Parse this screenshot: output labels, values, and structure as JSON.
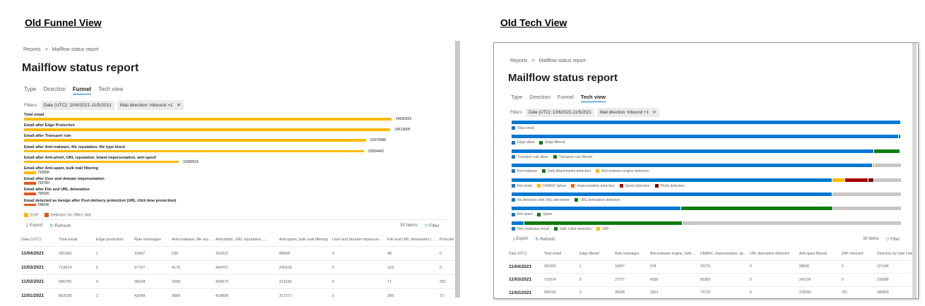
{
  "headings": {
    "left": "Old Funnel View",
    "right": "Old Tech View"
  },
  "breadcrumb": {
    "root": "Reports",
    "sep": ">",
    "current": "Mailflow status report"
  },
  "page_title": "Mailflow status report",
  "tabs": [
    "Type",
    "Direction",
    "Funnel",
    "Tech view"
  ],
  "filters": {
    "label": "Filters:",
    "date": "Date (UTC): 10/6/2021-11/5/2021",
    "direction": "Mail direction: Inbound +1",
    "close": "✕"
  },
  "toolbar": {
    "export": "Export",
    "refresh": "Refresh",
    "items": "30 items",
    "filter": "Filter"
  },
  "colors": {
    "eop": "#ffb900",
    "defender": "#e3571c",
    "blue": "#0078d4",
    "green": "#107c10",
    "yellow": "#ffb900",
    "orange": "#f7630c",
    "red": "#a80000",
    "maroon": "#6e0a0a",
    "gray": "#c8c6c4"
  },
  "chart_data": [
    {
      "type": "bar",
      "orientation": "horizontal",
      "title": "",
      "categories": [
        "Total email",
        "Email after Edge Protection",
        "Email after Transport rule",
        "Email after Anti-malware, file reputation, file type block",
        "Email after Anti-phish, URL reputation, brand impersonation, anti-spoof",
        "Email after Anti-spam, bulk mail filtering",
        "Email after User and domain impersonation",
        "Email after File and URL detonation",
        "Email detected as benign after Post-delivery protection (URL click time protection)"
      ],
      "values": [
        24690303,
        24613695,
        22970988,
        22834442,
        10389516,
        793808,
        793789,
        790605,
        788646
      ],
      "value_labels": [
        "24690303",
        "24613695",
        "22970988",
        "22834442",
        "10389516",
        "793808",
        "793789",
        "790605",
        "788646"
      ],
      "series_by_category": [
        "EOP",
        "EOP",
        "EOP",
        "EOP",
        "EOP",
        "EOP",
        "Defender for Office 365",
        "Defender for Office 365",
        "Defender for Office 365"
      ],
      "legend": [
        "EOP",
        "Defender for Office 365"
      ]
    },
    {
      "type": "bar",
      "orientation": "horizontal",
      "stacked": "100%",
      "rows": [
        {
          "segments": [
            {
              "name": "Total email",
              "color": "blue",
              "share": 1.0
            }
          ]
        },
        {
          "segments": [
            {
              "name": "Edge allow",
              "color": "blue",
              "share": 0.997
            },
            {
              "name": "Edge filtered",
              "color": "green",
              "share": 0.003
            }
          ]
        },
        {
          "segments": [
            {
              "name": "Transport rule allow",
              "color": "blue",
              "share": 0.93
            },
            {
              "name": "Transport rule filtered",
              "color": "green",
              "share": 0.065
            }
          ]
        },
        {
          "segments": [
            {
              "name": "Not malware",
              "color": "blue",
              "share": 0.925
            },
            {
              "name": "Safe Attachments detection",
              "color": "green",
              "share": 0.0
            },
            {
              "name": "Anti-malware engine detection",
              "color": "yellow",
              "share": 0.005
            }
          ]
        },
        {
          "segments": [
            {
              "name": "Not phish",
              "color": "blue",
              "share": 0.822
            },
            {
              "name": "DMARC failure",
              "color": "yellow",
              "share": 0.031
            },
            {
              "name": "Impersonation detection",
              "color": "orange",
              "share": 0.0
            },
            {
              "name": "Spoof detection",
              "color": "red",
              "share": 0.058
            },
            {
              "name": "Phish detection",
              "color": "maroon",
              "share": 0.013
            }
          ]
        },
        {
          "segments": [
            {
              "name": "No detection with URL detonation",
              "color": "blue",
              "share": 0.822
            },
            {
              "name": "URL detonation detection",
              "color": "green",
              "share": 0.0
            }
          ]
        },
        {
          "segments": [
            {
              "name": "Not spam",
              "color": "blue",
              "share": 0.434
            },
            {
              "name": "Spam",
              "color": "green",
              "share": 0.388
            }
          ]
        },
        {
          "segments": [
            {
              "name": "Non-malicious email",
              "color": "blue",
              "share": 0.03
            },
            {
              "name": "Safe Links detection",
              "color": "green",
              "share": 0.405
            },
            {
              "name": "ZAP",
              "color": "yellow",
              "share": 0.0
            }
          ]
        }
      ]
    }
  ],
  "funnel_table": {
    "columns": [
      "Date (UTC)",
      "Total email",
      "Edge protection",
      "Rule messages",
      "Anti-malware, file reputatio...",
      "Anti-phish, URL reputation, ...",
      "Anti-spam, bulk mail filtering",
      "User and domain imperson...",
      "File and URL detonation (AT...",
      "Post-del"
    ],
    "rows": [
      [
        "11/04/2021",
        "281060",
        "1",
        "19437",
        "530",
        "152622",
        "98668",
        "3",
        "48",
        "0"
      ],
      [
        "11/03/2021",
        "712614",
        "0",
        "37707",
        "4175",
        "404757",
        "242106",
        "0",
        "163",
        "0"
      ],
      [
        "11/02/2021",
        "696756",
        "0",
        "36628",
        "3258",
        "420672",
        "219182",
        "0",
        "71",
        "251"
      ],
      [
        "11/01/2021",
        "802538",
        "1",
        "42049",
        "3869",
        "418899",
        "317271",
        "0",
        "256",
        "73"
      ]
    ]
  },
  "tech_table": {
    "columns": [
      "Date (UTC)",
      "Total email",
      "Edge filtered",
      "Rule messages",
      "Anti-malware engine, Safe ...",
      "DMARC, impersonation, sp...",
      "URL detonation detection",
      "Anti-spam filtered",
      "ZAP removed",
      "Detection by Safe Links"
    ],
    "rows": [
      [
        "11/04/2021",
        "281060",
        "1",
        "19437",
        "578",
        "31279",
        "0",
        "98668",
        "0",
        "121346"
      ],
      [
        "11/03/2021",
        "712614",
        "0",
        "37707",
        "4338",
        "85369",
        "0",
        "242106",
        "0",
        "316088"
      ],
      [
        "11/02/2021",
        "696756",
        "0",
        "36628",
        "3323",
        "73722",
        "6",
        "219182",
        "251",
        "346950"
      ]
    ]
  }
}
